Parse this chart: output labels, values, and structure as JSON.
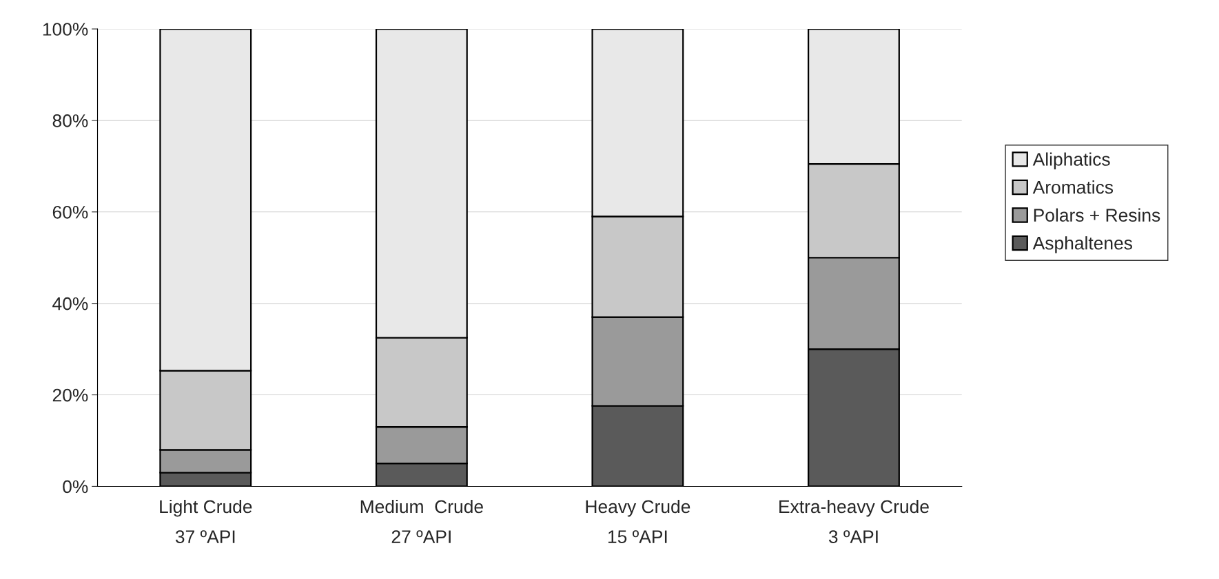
{
  "chart_data": {
    "type": "bar",
    "stacked": true,
    "categories": [
      "Light Crude\n37 ºAPI",
      "Medium  Crude\n27 ºAPI",
      "Heavy Crude\n15 ºAPI",
      "Extra-heavy Crude\n3 ºAPI"
    ],
    "series": [
      {
        "name": "Asphaltenes",
        "color": "#5a5a5a",
        "values": [
          3,
          5,
          17.6,
          30
        ]
      },
      {
        "name": "Polars + Resins",
        "color": "#9a9a9a",
        "values": [
          5,
          8,
          19.4,
          20
        ]
      },
      {
        "name": "Aromatics",
        "color": "#c8c8c8",
        "values": [
          17.3,
          19.5,
          22,
          20.5
        ]
      },
      {
        "name": "Aliphatics",
        "color": "#e8e8e8",
        "values": [
          74.7,
          67.5,
          41,
          29.5
        ]
      }
    ],
    "ylim": [
      0,
      100
    ],
    "yticks": [
      {
        "value": 0,
        "label": "0%"
      },
      {
        "value": 20,
        "label": "20%"
      },
      {
        "value": 40,
        "label": "40%"
      },
      {
        "value": 60,
        "label": "60%"
      },
      {
        "value": 80,
        "label": "80%"
      },
      {
        "value": 100,
        "label": "100%"
      }
    ],
    "grid": "y",
    "legend": "right"
  }
}
